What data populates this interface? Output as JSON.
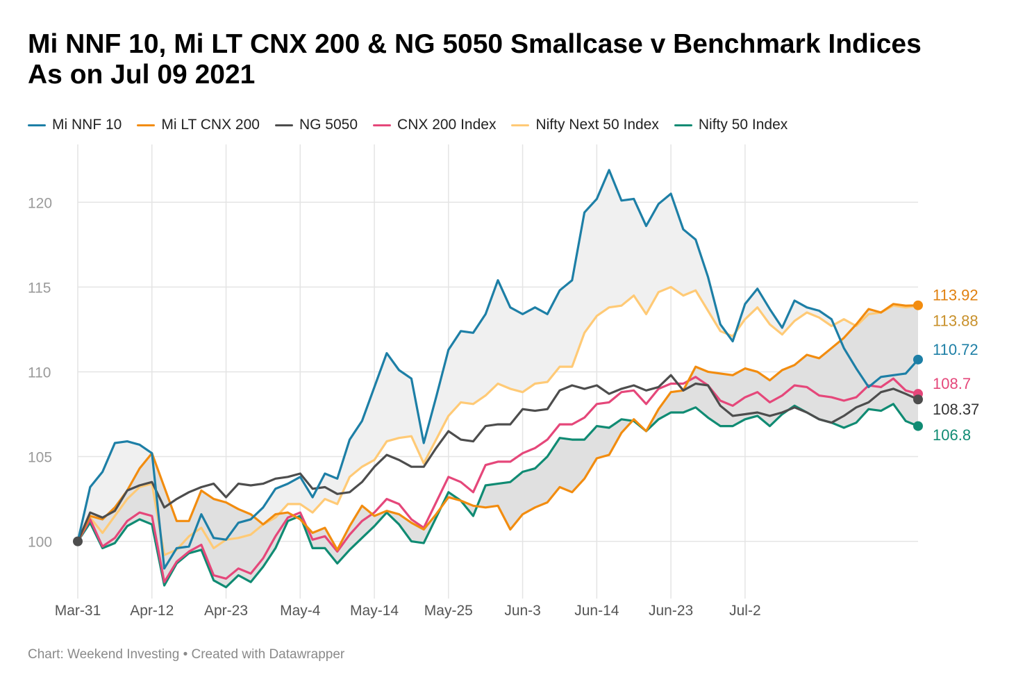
{
  "title_lines": [
    "Mi NNF 10, Mi LT CNX 200 & NG 5050 Smallcase v Benchmark Indices",
    "As on Jul 09 2021"
  ],
  "footer": {
    "source": "Chart: Weekend Investing",
    "separator": "•",
    "credit": "Created with Datawrapper"
  },
  "chart_data": {
    "type": "line",
    "ylim": [
      97.2,
      123
    ],
    "yticks": [
      100,
      105,
      110,
      115,
      120
    ],
    "xticks": [
      {
        "label": "Mar-31",
        "index": 0
      },
      {
        "label": "Apr-12",
        "index": 6
      },
      {
        "label": "Apr-23",
        "index": 12
      },
      {
        "label": "May-4",
        "index": 18
      },
      {
        "label": "May-14",
        "index": 24
      },
      {
        "label": "May-25",
        "index": 30
      },
      {
        "label": "Jun-3",
        "index": 36
      },
      {
        "label": "Jun-14",
        "index": 42
      },
      {
        "label": "Jun-23",
        "index": 48
      },
      {
        "label": "Jul-2",
        "index": 54
      }
    ],
    "grid": true,
    "legend_position": "top-left",
    "shaded_bands": [
      {
        "between": [
          "Mi NNF 10",
          "Nifty Next 50 Index"
        ],
        "color": "#f0f0f0"
      },
      {
        "between": [
          "Mi LT CNX 200",
          "Nifty 50 Index"
        ],
        "color": "#e0e0e0"
      }
    ],
    "series": [
      {
        "name": "Mi NNF 10",
        "color": "#1d7fa6",
        "end_label": "110.72",
        "values": [
          100,
          103.2,
          104.1,
          105.8,
          105.9,
          105.7,
          105.2,
          98.4,
          99.6,
          99.7,
          101.6,
          100.2,
          100.1,
          101.1,
          101.3,
          102.0,
          103.1,
          103.4,
          103.8,
          102.6,
          104.0,
          103.7,
          106.0,
          107.1,
          109.1,
          111.1,
          110.1,
          109.6,
          105.8,
          108.5,
          111.3,
          112.4,
          112.3,
          113.4,
          115.4,
          113.8,
          113.4,
          113.8,
          113.4,
          114.8,
          115.4,
          119.4,
          120.2,
          121.9,
          120.1,
          120.2,
          118.6,
          119.9,
          120.5,
          118.4,
          117.8,
          115.6,
          112.8,
          111.8,
          114.0,
          114.9,
          113.7,
          112.6,
          114.2,
          113.8,
          113.6,
          113.1,
          111.4,
          110.2,
          109.1,
          109.7,
          109.8,
          109.9,
          110.72
        ]
      },
      {
        "name": "Mi LT CNX 200",
        "color": "#f28c0f",
        "end_label": "113.92",
        "values": [
          100,
          101.5,
          101.3,
          102.0,
          103.0,
          104.3,
          105.2,
          103.2,
          101.2,
          101.2,
          103.0,
          102.5,
          102.3,
          101.9,
          101.6,
          101.0,
          101.6,
          101.7,
          101.3,
          100.5,
          100.8,
          99.5,
          100.9,
          102.1,
          101.5,
          101.8,
          101.6,
          101.1,
          100.7,
          101.6,
          102.6,
          102.4,
          102.1,
          102.0,
          102.1,
          100.7,
          101.6,
          102.0,
          102.3,
          103.2,
          102.9,
          103.7,
          104.9,
          105.1,
          106.4,
          107.2,
          106.5,
          107.8,
          108.8,
          108.9,
          110.3,
          110.0,
          109.9,
          109.8,
          110.2,
          110.0,
          109.5,
          110.1,
          110.4,
          111.0,
          110.8,
          111.4,
          112.0,
          112.8,
          113.7,
          113.5,
          114.0,
          113.9,
          113.92
        ]
      },
      {
        "name": "NG 5050",
        "color": "#4d4d4d",
        "end_label": "108.37",
        "values": [
          100,
          101.7,
          101.4,
          101.8,
          103.0,
          103.3,
          103.5,
          102.0,
          102.5,
          102.9,
          103.2,
          103.4,
          102.6,
          103.4,
          103.3,
          103.4,
          103.7,
          103.8,
          104.0,
          103.1,
          103.2,
          102.8,
          102.9,
          103.5,
          104.4,
          105.1,
          104.8,
          104.4,
          104.4,
          105.5,
          106.5,
          106.0,
          105.9,
          106.8,
          106.9,
          106.9,
          107.8,
          107.7,
          107.8,
          108.9,
          109.2,
          109.0,
          109.2,
          108.7,
          109.0,
          109.2,
          108.9,
          109.1,
          109.8,
          108.9,
          109.3,
          109.2,
          108.0,
          107.4,
          107.5,
          107.6,
          107.4,
          107.6,
          107.9,
          107.6,
          107.2,
          107.0,
          107.4,
          107.9,
          108.2,
          108.8,
          109.0,
          108.7,
          108.37
        ]
      },
      {
        "name": "CNX 200 Index",
        "color": "#e5477a",
        "end_label": "108.7",
        "values": [
          100,
          101.3,
          99.7,
          100.2,
          101.2,
          101.7,
          101.5,
          97.6,
          98.8,
          99.4,
          99.8,
          98.0,
          97.8,
          98.4,
          98.1,
          99.0,
          100.3,
          101.4,
          101.7,
          100.1,
          100.3,
          99.4,
          100.4,
          101.2,
          101.7,
          102.5,
          102.2,
          101.3,
          100.8,
          102.3,
          103.8,
          103.5,
          102.9,
          104.5,
          104.7,
          104.7,
          105.2,
          105.5,
          106.0,
          106.9,
          106.9,
          107.3,
          108.1,
          108.2,
          108.8,
          108.9,
          108.1,
          109.0,
          109.3,
          109.3,
          109.7,
          109.2,
          108.3,
          108.0,
          108.5,
          108.8,
          108.2,
          108.6,
          109.2,
          109.1,
          108.6,
          108.5,
          108.3,
          108.5,
          109.2,
          109.1,
          109.6,
          108.9,
          108.7
        ]
      },
      {
        "name": "Nifty Next 50 Index",
        "color": "#ffca76",
        "end_label": "113.88",
        "values": [
          100,
          101.4,
          100.5,
          101.5,
          102.5,
          103.2,
          103.4,
          99.2,
          99.5,
          100.3,
          100.8,
          99.6,
          100.1,
          100.2,
          100.4,
          101.0,
          101.4,
          102.2,
          102.2,
          101.7,
          102.5,
          102.2,
          103.8,
          104.4,
          104.8,
          105.9,
          106.1,
          106.2,
          104.6,
          106.0,
          107.4,
          108.2,
          108.1,
          108.6,
          109.3,
          109.0,
          108.8,
          109.3,
          109.4,
          110.3,
          110.3,
          112.3,
          113.3,
          113.8,
          113.9,
          114.5,
          113.4,
          114.7,
          115.0,
          114.5,
          114.8,
          113.6,
          112.4,
          112.1,
          113.1,
          113.8,
          112.8,
          112.2,
          113.0,
          113.5,
          113.2,
          112.7,
          113.1,
          112.7,
          113.4,
          113.5,
          113.9,
          113.8,
          113.88
        ]
      },
      {
        "name": "Nifty 50 Index",
        "color": "#108b73",
        "end_label": "106.8",
        "values": [
          100,
          101.1,
          99.6,
          99.9,
          100.9,
          101.3,
          101.0,
          97.4,
          98.7,
          99.3,
          99.5,
          97.7,
          97.3,
          98.0,
          97.6,
          98.5,
          99.6,
          101.2,
          101.5,
          99.6,
          99.6,
          98.7,
          99.5,
          100.2,
          100.9,
          101.7,
          101.0,
          100.0,
          99.9,
          101.4,
          102.9,
          102.4,
          101.5,
          103.3,
          103.4,
          103.5,
          104.1,
          104.3,
          105.0,
          106.1,
          106.0,
          106.0,
          106.8,
          106.7,
          107.2,
          107.1,
          106.5,
          107.2,
          107.6,
          107.6,
          107.9,
          107.3,
          106.8,
          106.8,
          107.2,
          107.4,
          106.8,
          107.5,
          108.0,
          107.6,
          107.2,
          107.0,
          106.7,
          107.0,
          107.8,
          107.7,
          108.1,
          107.1,
          106.8
        ]
      }
    ]
  }
}
